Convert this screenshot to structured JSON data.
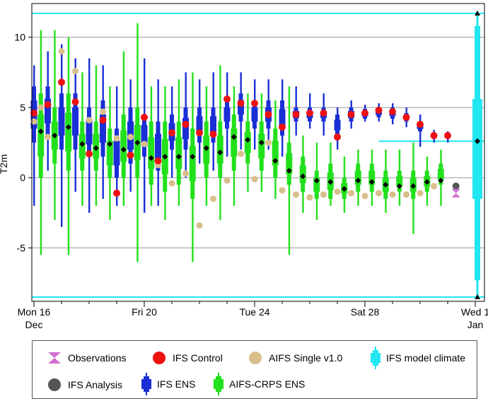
{
  "chart_data": {
    "type": "boxplot",
    "ylabel": "T2m",
    "ylim": [
      -8.8,
      12.4
    ],
    "yticks": [
      -5,
      0,
      5,
      10
    ],
    "xticks": [
      {
        "line1": "Mon 16",
        "line2": "Dec",
        "day": 0
      },
      {
        "line1": "Fri 20",
        "line2": "",
        "day": 4
      },
      {
        "line1": "Tue 24",
        "line2": "",
        "day": 8
      },
      {
        "line1": "Sat 28",
        "line2": "",
        "day": 12
      },
      {
        "line1": "Wed 1",
        "line2": "Jan",
        "day": 16
      }
    ],
    "colors": {
      "ifs_ens": "#1a2fd6",
      "aifs_crps": "#22e01c",
      "ifs_control": "#ee1111",
      "aifs_single": "#d9bf8c",
      "climate": "#22e6f0",
      "analysis": "#555555",
      "observations": "#d070d0",
      "median": "#000000"
    },
    "model_climate": {
      "min": -8.5,
      "p10": -7.3,
      "p25": -1.5,
      "median": 2.6,
      "p75": 5.6,
      "p90": 10.8,
      "max": 11.7
    },
    "observation": -1.1,
    "ifs_analysis": -0.6,
    "ifs_ens_steps": [
      {
        "step_h": 0,
        "p5": -2.0,
        "p25": 2.5,
        "p75": 6.5,
        "p95": 8.0,
        "control": 4.6
      },
      {
        "step_h": 12,
        "p5": 0.5,
        "p25": 3.0,
        "p75": 6.5,
        "p95": 9.0,
        "control": 5.2
      },
      {
        "step_h": 24,
        "p5": -3.5,
        "p25": 2.0,
        "p75": 6.0,
        "p95": 9.5,
        "control": 6.8
      },
      {
        "step_h": 36,
        "p5": -1.0,
        "p25": 2.0,
        "p75": 6.0,
        "p95": 8.5,
        "control": 5.4
      },
      {
        "step_h": 48,
        "p5": -2.5,
        "p25": 1.5,
        "p75": 5.0,
        "p95": 8.5,
        "control": 1.7
      },
      {
        "step_h": 60,
        "p5": -1.5,
        "p25": 1.5,
        "p75": 5.5,
        "p95": 8.0,
        "control": 4.1
      },
      {
        "step_h": 72,
        "p5": -2.0,
        "p25": 0.0,
        "p75": 3.5,
        "p95": 6.5,
        "control": -1.1
      },
      {
        "step_h": 84,
        "p5": -1.0,
        "p25": 1.0,
        "p75": 5.0,
        "p95": 7.0,
        "control": 1.6
      },
      {
        "step_h": 96,
        "p5": -2.5,
        "p25": 1.5,
        "p75": 4.5,
        "p95": 8.5,
        "control": 4.3
      },
      {
        "step_h": 108,
        "p5": -2.0,
        "p25": 0.5,
        "p75": 4.0,
        "p95": 7.0,
        "control": 1.2
      },
      {
        "step_h": 120,
        "p5": 0.0,
        "p25": 2.0,
        "p75": 4.5,
        "p95": 6.5,
        "control": 3.2
      },
      {
        "step_h": 132,
        "p5": 0.0,
        "p25": 2.0,
        "p75": 5.0,
        "p95": 7.5,
        "control": 3.8
      },
      {
        "step_h": 144,
        "p5": 1.0,
        "p25": 2.5,
        "p75": 5.0,
        "p95": 7.0,
        "control": 3.2
      },
      {
        "step_h": 156,
        "p5": 0.5,
        "p25": 2.5,
        "p75": 5.0,
        "p95": 7.5,
        "control": 3.1
      },
      {
        "step_h": 168,
        "p5": 1.5,
        "p25": 3.5,
        "p75": 5.5,
        "p95": 7.5,
        "control": 5.6
      },
      {
        "step_h": 180,
        "p5": 2.0,
        "p25": 4.0,
        "p75": 6.0,
        "p95": 7.5,
        "control": 5.3
      },
      {
        "step_h": 192,
        "p5": 2.0,
        "p25": 3.5,
        "p75": 5.5,
        "p95": 7.0,
        "control": 5.3
      },
      {
        "step_h": 204,
        "p5": 2.0,
        "p25": 3.5,
        "p75": 5.5,
        "p95": 7.0,
        "control": 4.5
      },
      {
        "step_h": 216,
        "p5": 1.5,
        "p25": 3.0,
        "p75": 5.5,
        "p95": 7.0,
        "control": 3.6
      },
      {
        "step_h": 228,
        "p5": 3.0,
        "p25": 4.0,
        "p75": 5.0,
        "p95": 6.5,
        "control": 4.5
      },
      {
        "step_h": 240,
        "p5": 3.5,
        "p25": 4.0,
        "p75": 5.0,
        "p95": 6.0,
        "control": 4.6
      },
      {
        "step_h": 252,
        "p5": 3.0,
        "p25": 4.0,
        "p75": 5.0,
        "p95": 6.0,
        "control": 4.6
      },
      {
        "step_h": 264,
        "p5": 2.0,
        "p25": 3.0,
        "p75": 4.5,
        "p95": 5.0,
        "control": 2.9
      },
      {
        "step_h": 276,
        "p5": 3.5,
        "p25": 4.0,
        "p75": 5.0,
        "p95": 5.5,
        "control": 4.5
      },
      {
        "step_h": 288,
        "p5": 4.0,
        "p25": 4.2,
        "p75": 4.9,
        "p95": 5.2,
        "control": 4.6
      },
      {
        "step_h": 300,
        "p5": 4.0,
        "p25": 4.3,
        "p75": 5.0,
        "p95": 5.3,
        "control": 4.8
      },
      {
        "step_h": 312,
        "p5": 3.8,
        "p25": 4.2,
        "p75": 5.0,
        "p95": 5.3,
        "control": 4.7
      },
      {
        "step_h": 324,
        "p5": 3.6,
        "p25": 4.0,
        "p75": 4.6,
        "p95": 5.0,
        "control": 4.3
      },
      {
        "step_h": 336,
        "p5": 2.2,
        "p25": 3.3,
        "p75": 4.0,
        "p95": 4.5,
        "control": 3.8
      },
      {
        "step_h": 348,
        "p5": 2.5,
        "p25": 2.8,
        "p75": 3.2,
        "p95": 3.4,
        "control": 3.0
      },
      {
        "step_h": 360,
        "p5": 2.5,
        "p25": 2.8,
        "p75": 3.2,
        "p95": 3.3,
        "control": 3.0
      }
    ],
    "aifs_crps_steps": [
      {
        "step_h": 6,
        "p5": -5.5,
        "p25": 0.0,
        "p75": 6.0,
        "p95": 10.5,
        "median": 3.3
      },
      {
        "step_h": 18,
        "p5": -3.0,
        "p25": 1.0,
        "p75": 5.0,
        "p95": 10.5,
        "median": 3.0
      },
      {
        "step_h": 30,
        "p5": -5.5,
        "p25": 0.5,
        "p75": 6.0,
        "p95": 10.0,
        "median": 3.6
      },
      {
        "step_h": 42,
        "p5": -2.0,
        "p25": 0.5,
        "p75": 4.0,
        "p95": 7.5,
        "median": 2.4
      },
      {
        "step_h": 54,
        "p5": -2.0,
        "p25": 0.5,
        "p75": 4.0,
        "p95": 8.0,
        "median": 2.1
      },
      {
        "step_h": 66,
        "p5": -3.0,
        "p25": 0.0,
        "p75": 3.5,
        "p95": 6.5,
        "median": 2.4
      },
      {
        "step_h": 78,
        "p5": -2.0,
        "p25": 0.0,
        "p75": 4.5,
        "p95": 9.0,
        "median": 2.0
      },
      {
        "step_h": 90,
        "p5": -6.0,
        "p25": 0.0,
        "p75": 5.0,
        "p95": 11.0,
        "median": 2.5
      },
      {
        "step_h": 102,
        "p5": -2.0,
        "p25": -0.5,
        "p75": 4.0,
        "p95": 6.5,
        "median": 1.4
      },
      {
        "step_h": 114,
        "p5": -3.0,
        "p25": -1.0,
        "p75": 4.0,
        "p95": 6.5,
        "median": 1.5
      },
      {
        "step_h": 126,
        "p5": -2.0,
        "p25": -0.5,
        "p75": 4.0,
        "p95": 7.0,
        "median": 1.5
      },
      {
        "step_h": 138,
        "p5": -6.0,
        "p25": -1.5,
        "p75": 3.5,
        "p95": 7.5,
        "median": 1.5
      },
      {
        "step_h": 150,
        "p5": -2.0,
        "p25": 0.0,
        "p75": 4.0,
        "p95": 6.5,
        "median": 2.1
      },
      {
        "step_h": 162,
        "p5": -3.0,
        "p25": 0.0,
        "p75": 4.0,
        "p95": 8.0,
        "median": 1.8
      },
      {
        "step_h": 174,
        "p5": -2.0,
        "p25": 0.5,
        "p75": 4.5,
        "p95": 6.5,
        "median": 2.9
      },
      {
        "step_h": 186,
        "p5": -1.0,
        "p25": 1.0,
        "p75": 4.0,
        "p95": 6.0,
        "median": 2.7
      },
      {
        "step_h": 198,
        "p5": -1.0,
        "p25": 0.5,
        "p75": 4.0,
        "p95": 6.0,
        "median": 2.5
      },
      {
        "step_h": 210,
        "p5": -1.5,
        "p25": 0.0,
        "p75": 3.5,
        "p95": 5.5,
        "median": 1.2
      },
      {
        "step_h": 222,
        "p5": -5.5,
        "p25": -0.5,
        "p75": 2.5,
        "p95": 6.5,
        "median": 0.5
      },
      {
        "step_h": 234,
        "p5": -2.5,
        "p25": -1.0,
        "p75": 1.5,
        "p95": 3.0,
        "median": 0.1
      },
      {
        "step_h": 246,
        "p5": -3.0,
        "p25": -1.5,
        "p75": 0.5,
        "p95": 2.5,
        "median": -0.2
      },
      {
        "step_h": 258,
        "p5": -2.0,
        "p25": -1.5,
        "p75": 1.0,
        "p95": 2.5,
        "median": -0.3
      },
      {
        "step_h": 270,
        "p5": -2.5,
        "p25": -1.5,
        "p75": 0.0,
        "p95": 1.5,
        "median": -0.8
      },
      {
        "step_h": 282,
        "p5": -2.0,
        "p25": -1.0,
        "p75": 1.0,
        "p95": 2.0,
        "median": -0.2
      },
      {
        "step_h": 294,
        "p5": -2.0,
        "p25": -1.0,
        "p75": 1.0,
        "p95": 2.0,
        "median": -0.3
      },
      {
        "step_h": 306,
        "p5": -2.5,
        "p25": -1.5,
        "p75": 0.5,
        "p95": 2.0,
        "median": -0.5
      },
      {
        "step_h": 318,
        "p5": -2.0,
        "p25": -1.0,
        "p75": 0.5,
        "p95": 2.0,
        "median": -0.6
      },
      {
        "step_h": 330,
        "p5": -4.0,
        "p25": -1.5,
        "p75": 0.5,
        "p95": 2.5,
        "median": -0.6
      },
      {
        "step_h": 342,
        "p5": -2.0,
        "p25": -1.0,
        "p75": 0.5,
        "p95": 1.5,
        "median": -0.3
      },
      {
        "step_h": 354,
        "p5": -2.0,
        "p25": -0.5,
        "p75": 1.0,
        "p95": 2.0,
        "median": -0.2
      }
    ],
    "aifs_single_points": [
      {
        "step_h": 0,
        "value": 4.0
      },
      {
        "step_h": 6,
        "value": 5.0
      },
      {
        "step_h": 12,
        "value": 2.9
      },
      {
        "step_h": 24,
        "value": 9.0
      },
      {
        "step_h": 36,
        "value": 7.6
      },
      {
        "step_h": 48,
        "value": 4.1
      },
      {
        "step_h": 60,
        "value": 4.7
      },
      {
        "step_h": 72,
        "value": 2.8
      },
      {
        "step_h": 84,
        "value": 2.9
      },
      {
        "step_h": 96,
        "value": 2.4
      },
      {
        "step_h": 108,
        "value": 0.9
      },
      {
        "step_h": 120,
        "value": -0.4
      },
      {
        "step_h": 132,
        "value": 0.3
      },
      {
        "step_h": 144,
        "value": -3.4
      },
      {
        "step_h": 156,
        "value": -1.5
      },
      {
        "step_h": 168,
        "value": -0.2
      },
      {
        "step_h": 180,
        "value": 1.7
      },
      {
        "step_h": 192,
        "value": -0.1
      },
      {
        "step_h": 204,
        "value": 2.5
      },
      {
        "step_h": 216,
        "value": -0.9
      },
      {
        "step_h": 228,
        "value": -1.2
      },
      {
        "step_h": 240,
        "value": -1.4
      },
      {
        "step_h": 252,
        "value": -1.2
      },
      {
        "step_h": 264,
        "value": -1.0
      },
      {
        "step_h": 276,
        "value": -1.1
      },
      {
        "step_h": 288,
        "value": -1.3
      },
      {
        "step_h": 300,
        "value": -1.1
      },
      {
        "step_h": 312,
        "value": -1.2
      },
      {
        "step_h": 324,
        "value": -1.2
      },
      {
        "step_h": 336,
        "value": -1.1
      },
      {
        "step_h": 348,
        "value": -0.6
      }
    ]
  },
  "legend": {
    "observations": "Observations",
    "ifs_control": "IFS Control",
    "aifs_single": "AIFS Single v1.0",
    "model_climate": "IFS model climate",
    "ifs_analysis": "IFS Analysis",
    "ifs_ens": "IFS ENS",
    "aifs_crps": "AIFS-CRPS ENS"
  }
}
